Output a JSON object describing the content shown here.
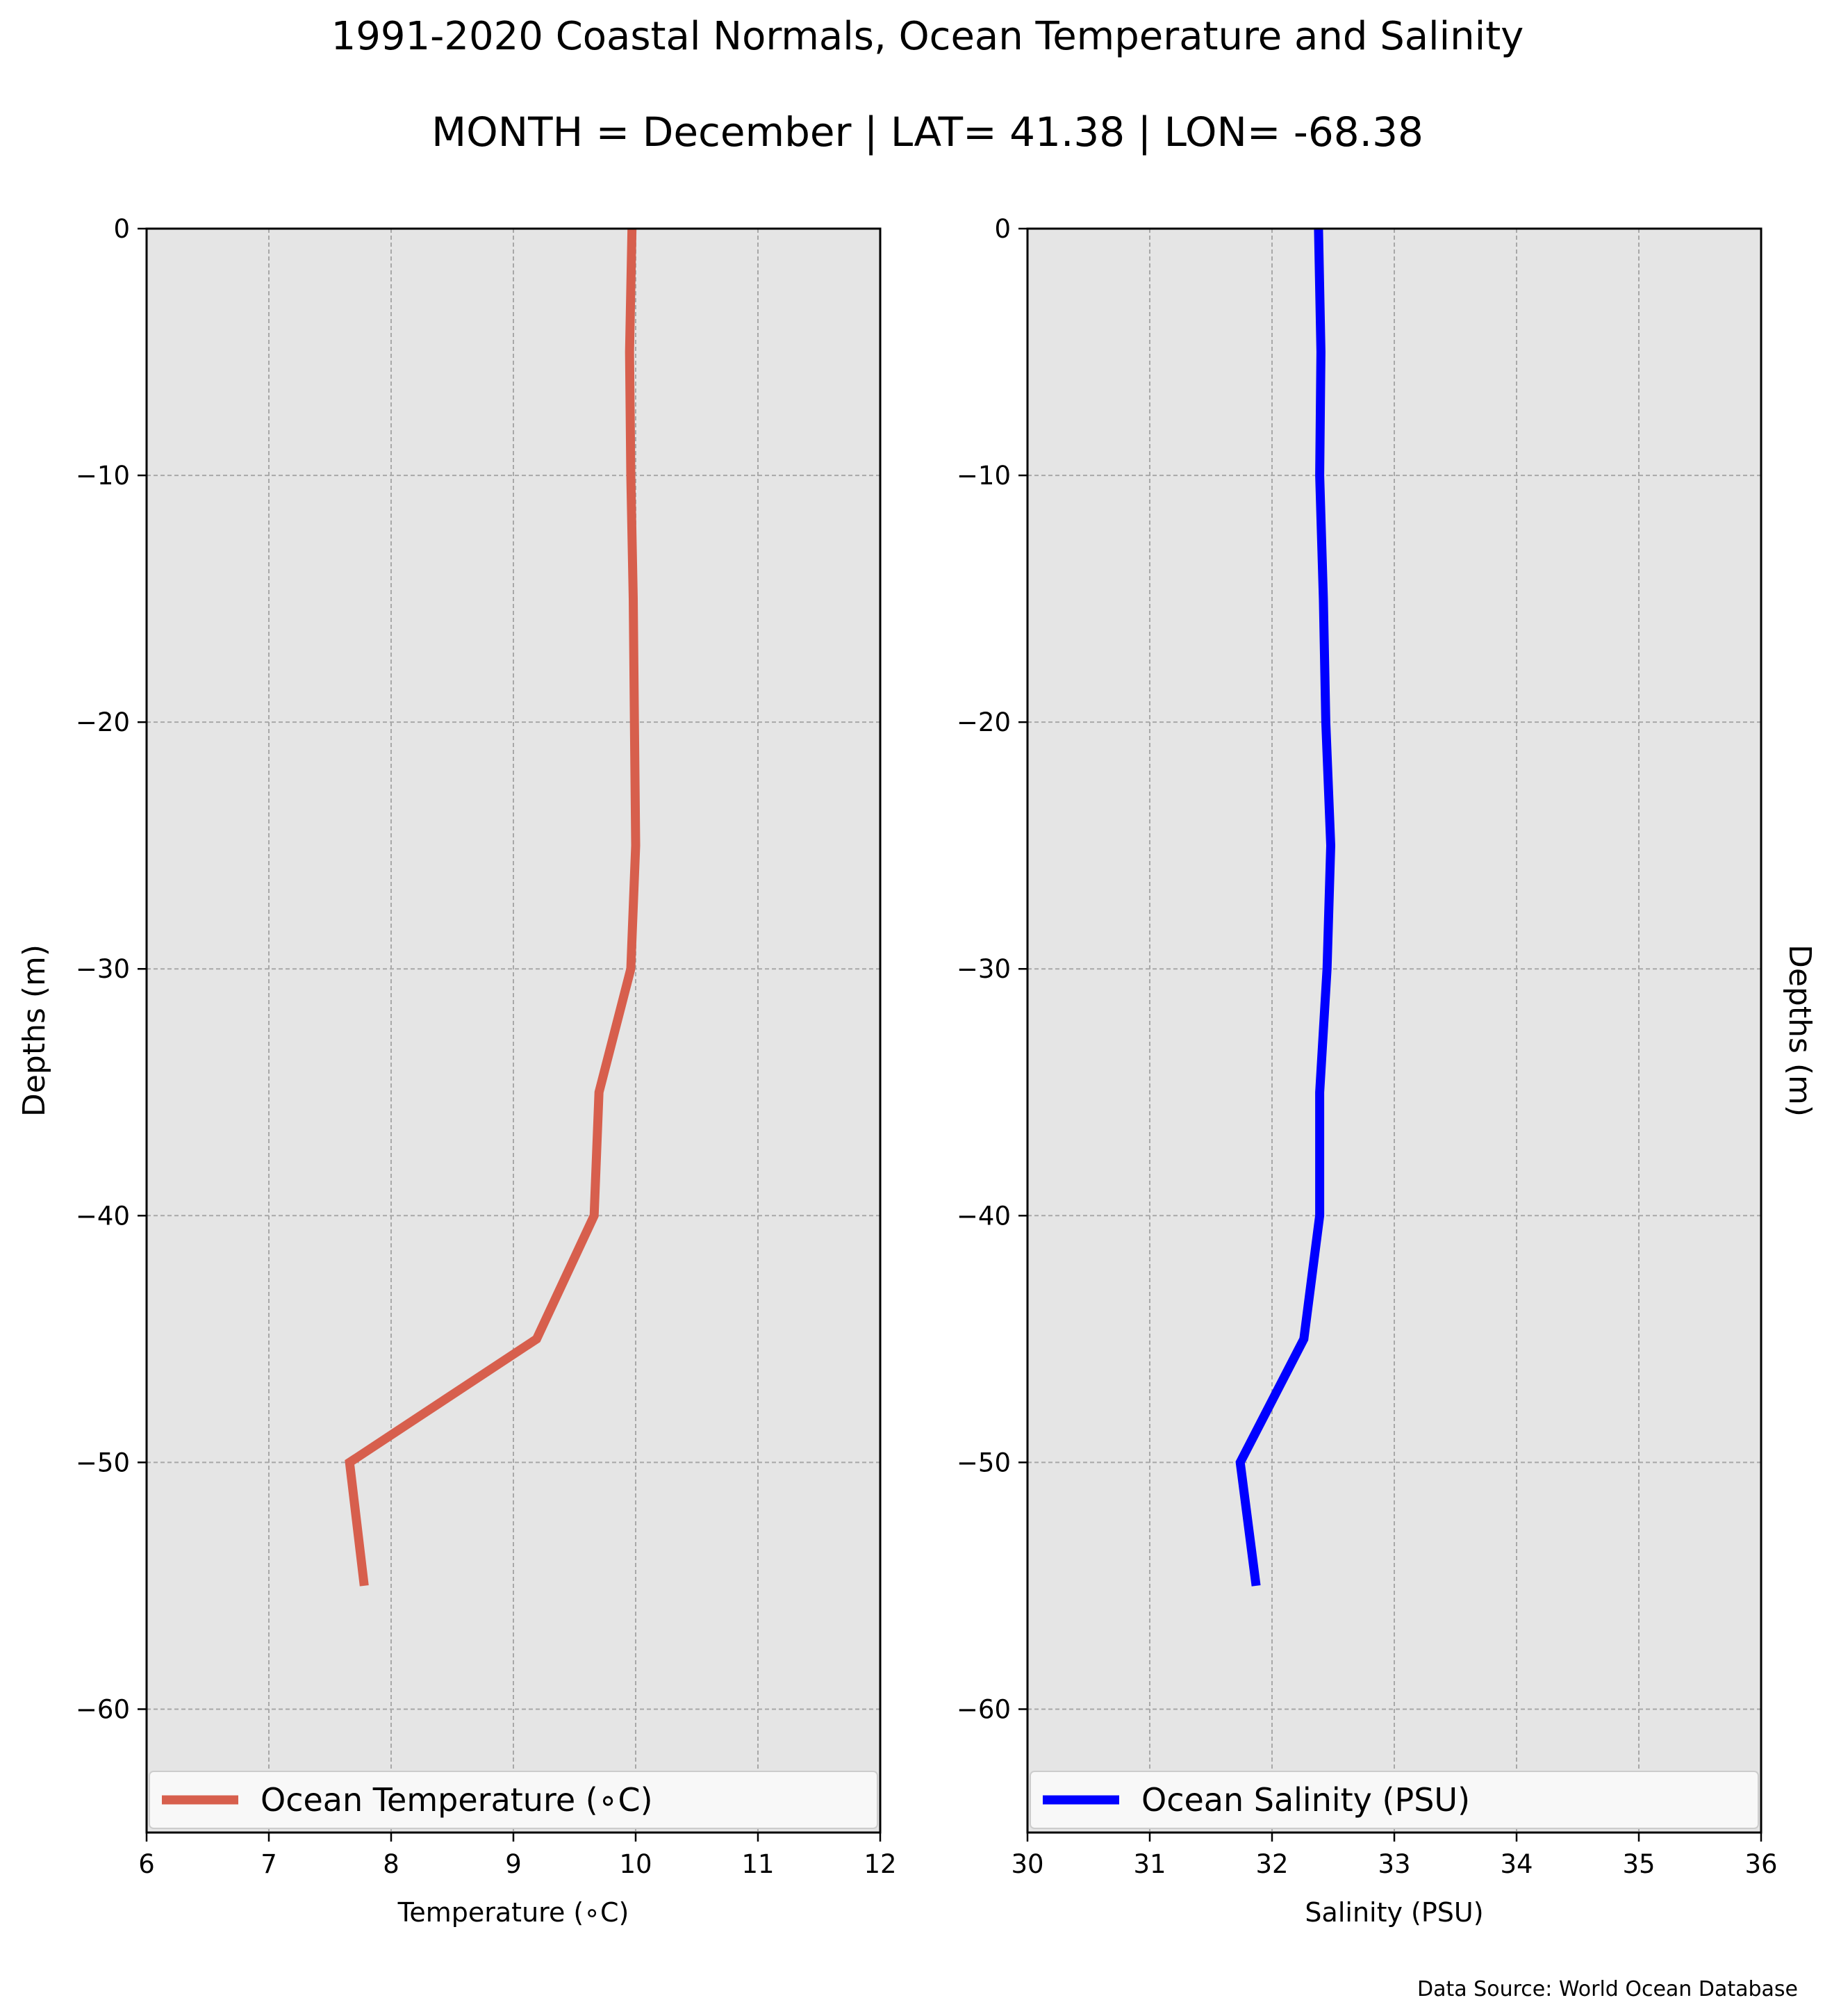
{
  "figure": {
    "title": "1991-2020 Coastal Normals, Ocean Temperature and Salinity",
    "subtitle": "MONTH = December | LAT= 41.38 | LON= -68.38",
    "source_note": "Data Source: World Ocean Database"
  },
  "chart_data": [
    {
      "type": "line",
      "xlabel": "Temperature (∘C)",
      "ylabel": "Depths (m)",
      "xlim": [
        6,
        12
      ],
      "ylim": [
        -65,
        0
      ],
      "xticks": [
        6,
        7,
        8,
        9,
        10,
        11,
        12
      ],
      "yticks": [
        0,
        -10,
        -20,
        -30,
        -40,
        -50,
        -60
      ],
      "ytick_labels": [
        "0",
        "−10",
        "−20",
        "−30",
        "−40",
        "−50",
        "−60"
      ],
      "grid": true,
      "background": "#e5e5e5",
      "legend_position": "bottom",
      "series": [
        {
          "name": "Ocean Temperature (∘C)",
          "color": "#d75f4d",
          "x": [
            9.97,
            9.95,
            9.96,
            9.98,
            9.99,
            10.0,
            9.96,
            9.7,
            9.66,
            9.19,
            7.66,
            7.78
          ],
          "y": [
            0,
            -5,
            -10,
            -15,
            -20,
            -25,
            -30,
            -35,
            -40,
            -45,
            -50,
            -55
          ]
        }
      ]
    },
    {
      "type": "line",
      "xlabel": "Salinity (PSU)",
      "ylabel": "Depths (m)",
      "ylabel_side": "right",
      "xlim": [
        30,
        36
      ],
      "ylim": [
        -65,
        0
      ],
      "xticks": [
        30,
        31,
        32,
        33,
        34,
        35,
        36
      ],
      "yticks": [
        0,
        -10,
        -20,
        -30,
        -40,
        -50,
        -60
      ],
      "ytick_labels": [
        "0",
        "−10",
        "−20",
        "−30",
        "−40",
        "−50",
        "−60"
      ],
      "grid": true,
      "background": "#e5e5e5",
      "legend_position": "bottom",
      "series": [
        {
          "name": "Ocean Salinity (PSU)",
          "color": "#0000ff",
          "x": [
            32.38,
            32.4,
            32.39,
            32.42,
            32.44,
            32.48,
            32.45,
            32.39,
            32.39,
            32.26,
            31.74,
            31.87
          ],
          "y": [
            0,
            -5,
            -10,
            -15,
            -20,
            -25,
            -30,
            -35,
            -40,
            -45,
            -50,
            -55
          ]
        }
      ]
    }
  ]
}
